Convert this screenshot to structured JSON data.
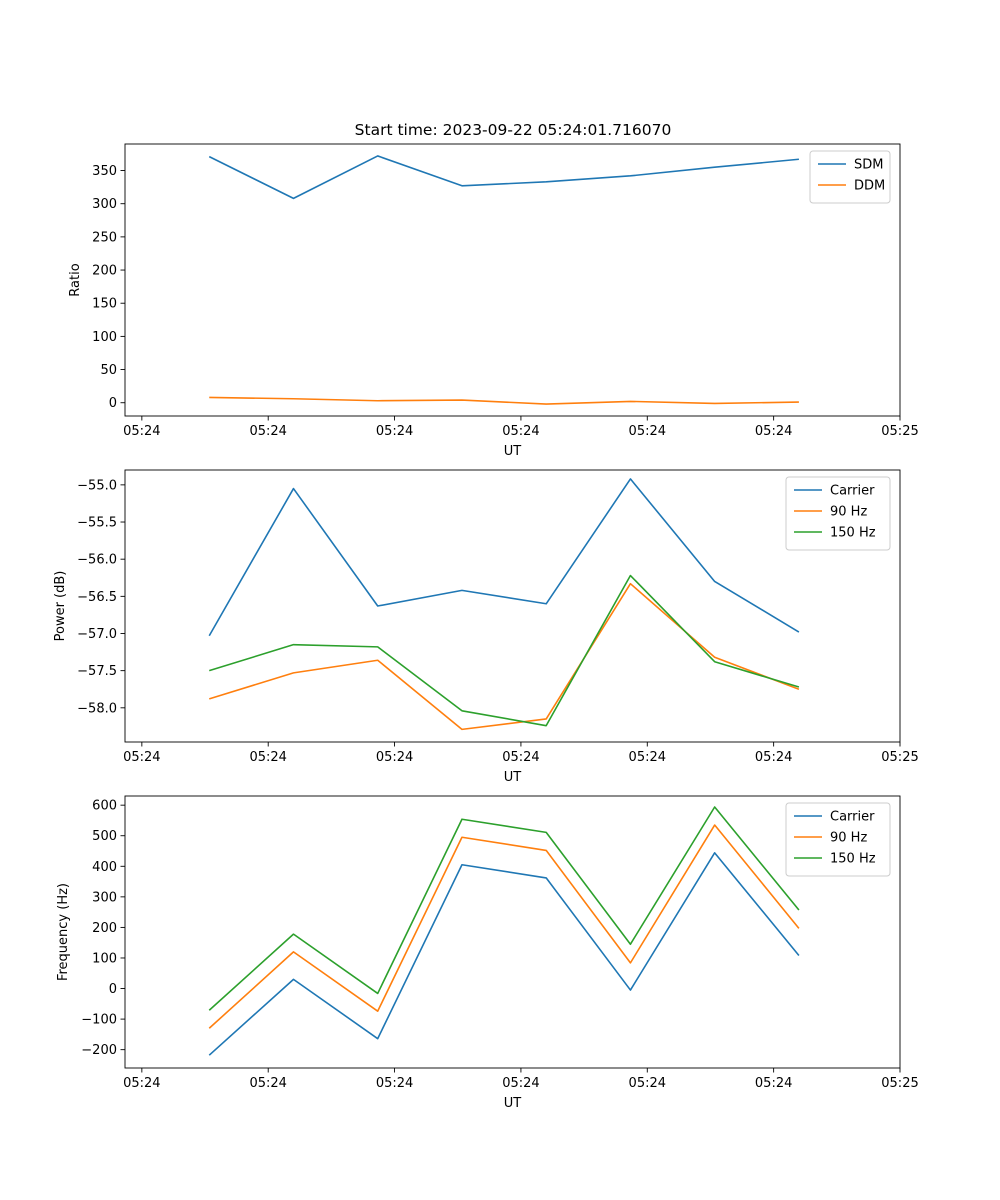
{
  "figure": {
    "title": "Start time: 2023-09-22 05:24:01.716070"
  },
  "chart_data": [
    {
      "type": "line",
      "title": "Start time: 2023-09-22 05:24:01.716070",
      "xlabel": "UT",
      "ylabel": "Ratio",
      "xlim": [
        0,
        9.2
      ],
      "ylim": [
        -20,
        390
      ],
      "x_ticks": [
        0.2,
        1.7,
        3.2,
        4.7,
        6.2,
        7.7,
        9.2
      ],
      "x_tick_labels": [
        "05:24",
        "05:24",
        "05:24",
        "05:24",
        "05:24",
        "05:24",
        "05:25"
      ],
      "y_ticks": [
        0,
        50,
        100,
        150,
        200,
        250,
        300,
        350
      ],
      "y_tick_labels": [
        "0",
        "50",
        "100",
        "150",
        "200",
        "250",
        "300",
        "350"
      ],
      "x": [
        1,
        2,
        3,
        4,
        5,
        6,
        7,
        8
      ],
      "legend_position": "top-right",
      "series": [
        {
          "name": "SDM",
          "color": "#1f77b4",
          "values": [
            371,
            308,
            372,
            327,
            333,
            342,
            355,
            367
          ]
        },
        {
          "name": "DDM",
          "color": "#ff7f0e",
          "values": [
            8,
            6,
            3,
            4,
            -2,
            2,
            -1,
            1
          ]
        }
      ]
    },
    {
      "type": "line",
      "title": "",
      "xlabel": "UT",
      "ylabel": "Power (dB)",
      "xlim": [
        0,
        9.2
      ],
      "ylim": [
        -58.46,
        -54.8
      ],
      "x_ticks": [
        0.2,
        1.7,
        3.2,
        4.7,
        6.2,
        7.7,
        9.2
      ],
      "x_tick_labels": [
        "05:24",
        "05:24",
        "05:24",
        "05:24",
        "05:24",
        "05:24",
        "05:25"
      ],
      "y_ticks": [
        -58.0,
        -57.5,
        -57.0,
        -56.5,
        -56.0,
        -55.5,
        -55.0
      ],
      "y_tick_labels": [
        "−58.0",
        "−57.5",
        "−57.0",
        "−56.5",
        "−56.0",
        "−55.5",
        "−55.0"
      ],
      "x": [
        1,
        2,
        3,
        4,
        5,
        6,
        7,
        8
      ],
      "legend_position": "top-right",
      "series": [
        {
          "name": "Carrier",
          "color": "#1f77b4",
          "values": [
            -57.03,
            -55.05,
            -56.63,
            -56.42,
            -56.6,
            -54.92,
            -56.3,
            -56.98
          ]
        },
        {
          "name": "90 Hz",
          "color": "#ff7f0e",
          "values": [
            -57.88,
            -57.53,
            -57.36,
            -58.29,
            -58.15,
            -56.33,
            -57.32,
            -57.75
          ]
        },
        {
          "name": "150 Hz",
          "color": "#2ca02c",
          "values": [
            -57.5,
            -57.15,
            -57.18,
            -58.04,
            -58.24,
            -56.22,
            -57.38,
            -57.72
          ]
        }
      ]
    },
    {
      "type": "line",
      "title": "",
      "xlabel": "UT",
      "ylabel": "Frequency (Hz)",
      "xlim": [
        0,
        9.2
      ],
      "ylim": [
        -260,
        630
      ],
      "x_ticks": [
        0.2,
        1.7,
        3.2,
        4.7,
        6.2,
        7.7,
        9.2
      ],
      "x_tick_labels": [
        "05:24",
        "05:24",
        "05:24",
        "05:24",
        "05:24",
        "05:24",
        "05:25"
      ],
      "y_ticks": [
        -200,
        -100,
        0,
        100,
        200,
        300,
        400,
        500,
        600
      ],
      "y_tick_labels": [
        "−200",
        "−100",
        "0",
        "100",
        "200",
        "300",
        "400",
        "500",
        "600"
      ],
      "x": [
        1,
        2,
        3,
        4,
        5,
        6,
        7,
        8
      ],
      "legend_position": "top-right",
      "series": [
        {
          "name": "Carrier",
          "color": "#1f77b4",
          "values": [
            -218,
            30,
            -164,
            405,
            362,
            -5,
            444,
            108
          ]
        },
        {
          "name": "90 Hz",
          "color": "#ff7f0e",
          "values": [
            -130,
            120,
            -74,
            495,
            452,
            84,
            535,
            197
          ]
        },
        {
          "name": "150 Hz",
          "color": "#2ca02c",
          "values": [
            -71,
            178,
            -16,
            554,
            511,
            145,
            594,
            257
          ]
        }
      ]
    }
  ]
}
